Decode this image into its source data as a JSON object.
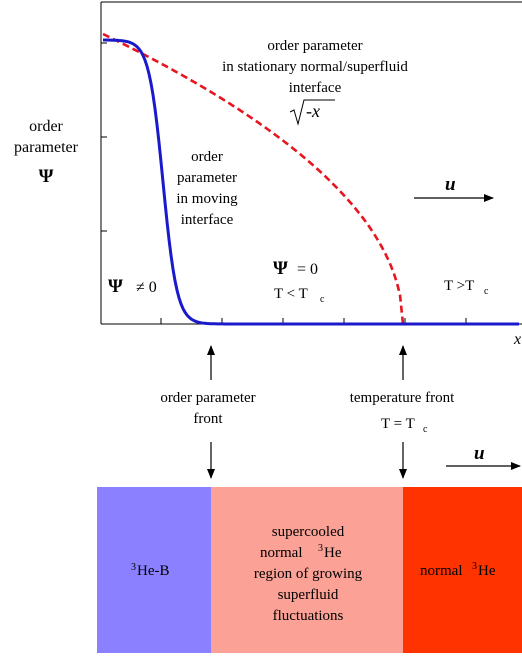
{
  "plot": {
    "ylabel_line1": "order",
    "ylabel_line2": "parameter",
    "ylabel_symbol": "Ψ",
    "x_axis_label": "x",
    "stationary_label": [
      "order parameter",
      "in stationary normal/superfluid",
      "interface"
    ],
    "sqrt_label_radicand": "-x",
    "moving_label": [
      "order",
      "parameter",
      "in moving",
      "interface"
    ],
    "velocity_label": "u",
    "psi_nonzero": {
      "symbol": "Ψ",
      "relation": "≠ 0"
    },
    "psi_zero": {
      "symbol": "Ψ",
      "relation": "= 0"
    },
    "temp_below": {
      "base": "T < T",
      "sub": "c"
    },
    "temp_above": {
      "base": "T >T",
      "sub": "c"
    },
    "colors": {
      "moving_curve": "#1a1acc",
      "stationary_curve": "#e8141e"
    }
  },
  "annotations": {
    "op_front": [
      "order parameter",
      "front"
    ],
    "temp_front_line1": "temperature front",
    "temp_front_line2": {
      "base": "T = T",
      "sub": "c"
    },
    "velocity_label": "u"
  },
  "regions": {
    "he_b": {
      "sup": "3",
      "text": "He-B",
      "color": "#8b80ff"
    },
    "supercooled": {
      "line1": "supercooled",
      "line2_pre": "normal ",
      "line2_sup": "3",
      "line2_post": "He",
      "line3": "region of growing",
      "line4": "superfluid",
      "line5": "fluctuations",
      "color": "#fca196"
    },
    "normal": {
      "pre": "normal ",
      "sup": "3",
      "post": "He",
      "color": "#ff3300"
    }
  }
}
